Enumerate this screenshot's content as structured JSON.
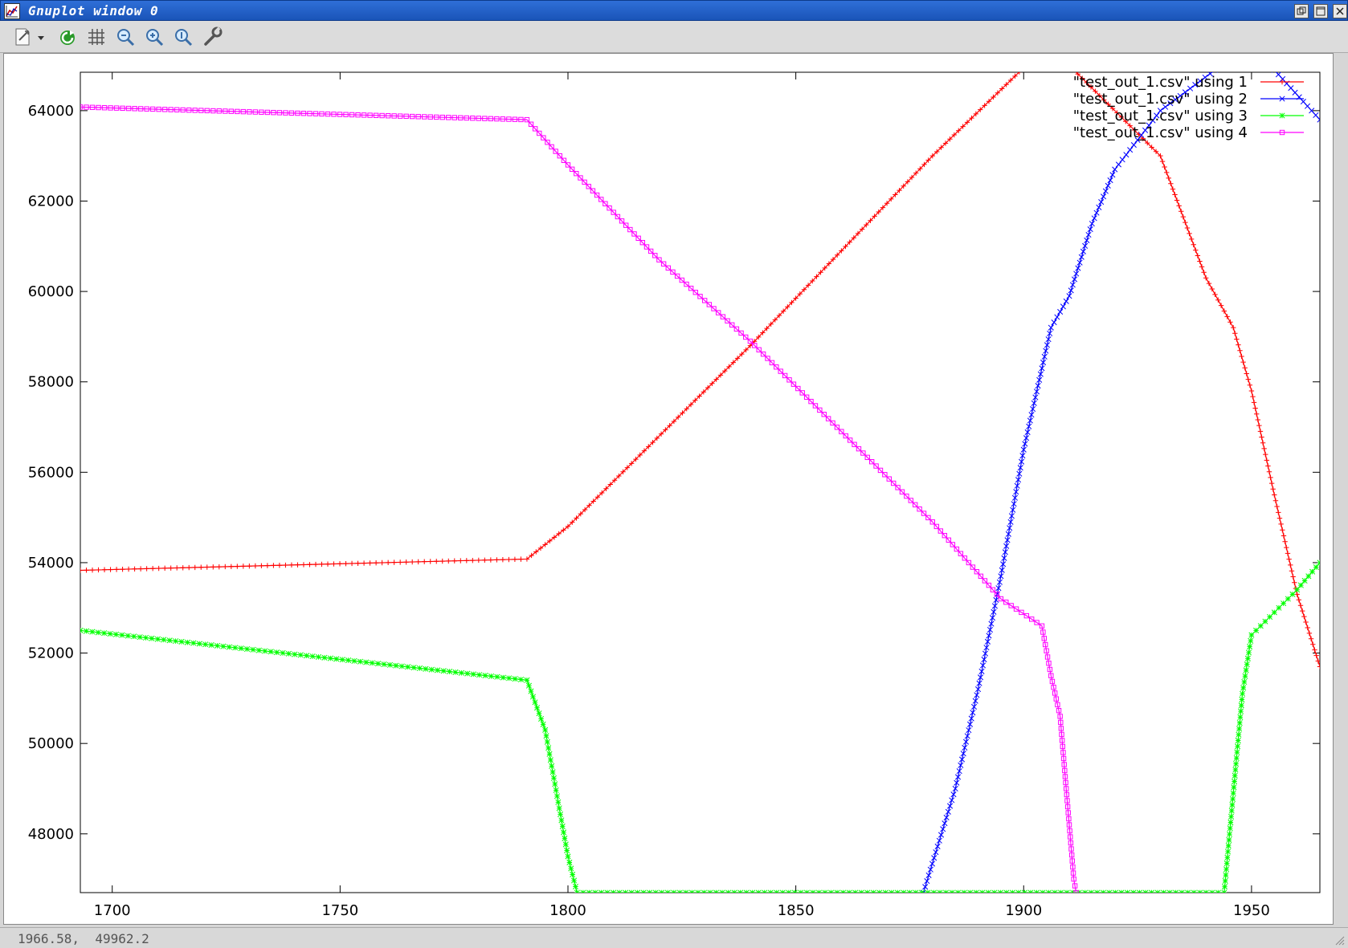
{
  "window": {
    "title": "Gnuplot window 0",
    "controls": [
      "restore",
      "maximize",
      "close"
    ]
  },
  "toolbar": {
    "items": [
      {
        "name": "export-icon"
      },
      {
        "name": "dropdown-arrow-icon"
      },
      {
        "name": "replot-icon"
      },
      {
        "name": "grid-icon"
      },
      {
        "name": "zoom-previous-icon"
      },
      {
        "name": "zoom-next-icon"
      },
      {
        "name": "autoscale-icon"
      },
      {
        "name": "settings-wrench-icon"
      }
    ]
  },
  "status": {
    "coordinates": "1966.58,  49962.2"
  },
  "chart_data": {
    "type": "line",
    "title": "",
    "xlabel": "",
    "ylabel": "",
    "xlim": [
      1693,
      1965
    ],
    "ylim": [
      46700,
      64850
    ],
    "xticks": [
      1700,
      1750,
      1800,
      1850,
      1900,
      1950
    ],
    "yticks": [
      48000,
      50000,
      52000,
      54000,
      56000,
      58000,
      60000,
      62000,
      64000
    ],
    "grid": false,
    "legend": "top-right",
    "series": [
      {
        "name": "\"test_out_1.csv\" using 1",
        "color": "#ff0000",
        "marker": "plus",
        "points": [
          [
            1693,
            53830
          ],
          [
            1791,
            54080
          ],
          [
            1800,
            54800
          ],
          [
            1840,
            58800
          ],
          [
            1880,
            63000
          ],
          [
            1900,
            64950
          ],
          [
            1910,
            65000
          ],
          [
            1930,
            63000
          ],
          [
            1940,
            60300
          ],
          [
            1946,
            59200
          ],
          [
            1950,
            57800
          ],
          [
            1955,
            55500
          ],
          [
            1960,
            53300
          ],
          [
            1965,
            51700
          ]
        ]
      },
      {
        "name": "\"test_out_1.csv\" using 2",
        "color": "#0000ff",
        "marker": "x",
        "points": [
          [
            1878,
            46700
          ],
          [
            1885,
            49000
          ],
          [
            1890,
            51200
          ],
          [
            1895,
            53700
          ],
          [
            1900,
            56500
          ],
          [
            1906,
            59200
          ],
          [
            1910,
            59900
          ],
          [
            1915,
            61500
          ],
          [
            1920,
            62700
          ],
          [
            1930,
            64000
          ],
          [
            1942,
            64900
          ],
          [
            1950,
            65000
          ],
          [
            1955,
            64900
          ],
          [
            1965,
            63800
          ]
        ]
      },
      {
        "name": "\"test_out_1.csv\" using 3",
        "color": "#00ff00",
        "marker": "star",
        "points": [
          [
            1693,
            52500
          ],
          [
            1791,
            51400
          ],
          [
            1795,
            50300
          ],
          [
            1800,
            47500
          ],
          [
            1802,
            46700
          ],
          [
            1944,
            46700
          ],
          [
            1946,
            48900
          ],
          [
            1948,
            51100
          ],
          [
            1950,
            52400
          ],
          [
            1955,
            52900
          ],
          [
            1960,
            53400
          ],
          [
            1965,
            54000
          ]
        ]
      },
      {
        "name": "\"test_out_1.csv\" using 4",
        "color": "#ff00ff",
        "marker": "square",
        "points": [
          [
            1693,
            64080
          ],
          [
            1791,
            63800
          ],
          [
            1800,
            62800
          ],
          [
            1820,
            60700
          ],
          [
            1840,
            58900
          ],
          [
            1860,
            56900
          ],
          [
            1880,
            54900
          ],
          [
            1895,
            53200
          ],
          [
            1904,
            52600
          ],
          [
            1906,
            51500
          ],
          [
            1908,
            50600
          ],
          [
            1909,
            49400
          ],
          [
            1910,
            48200
          ],
          [
            1911,
            47000
          ],
          [
            1911.5,
            46700
          ]
        ]
      }
    ]
  }
}
